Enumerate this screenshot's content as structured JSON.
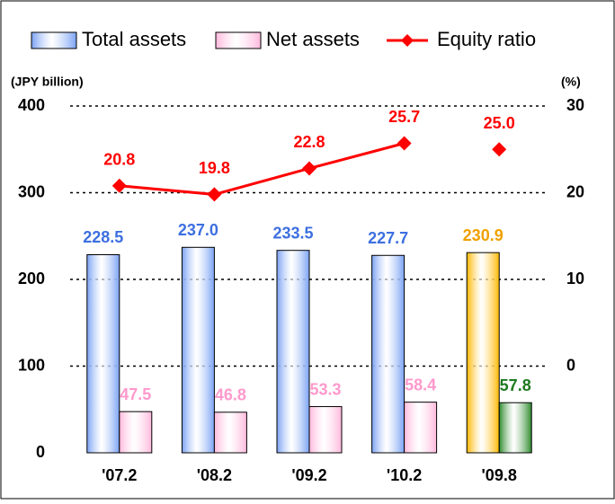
{
  "chart_data": {
    "type": "bar",
    "categories": [
      "'07.2",
      "'08.2",
      "'09.2",
      "'10.2",
      "'09.8"
    ],
    "y_label": "(JPY billion)",
    "y2_label": "(%)",
    "ylim": [
      0,
      400
    ],
    "yticks": [
      0,
      100,
      200,
      300,
      400
    ],
    "y2lim": [
      -10,
      30
    ],
    "y2ticks": [
      0,
      10,
      20,
      30
    ],
    "grid": true,
    "series": [
      {
        "name": "Total assets",
        "type": "bar",
        "color": "#7aa2f4",
        "colors": [
          "#7aa2f4",
          "#7aa2f4",
          "#7aa2f4",
          "#7aa2f4",
          "#ffb800"
        ],
        "label_colors": [
          "#3d6fe0",
          "#3d6fe0",
          "#3d6fe0",
          "#3d6fe0",
          "#f0a000"
        ],
        "values": [
          228.5,
          237.0,
          233.5,
          227.7,
          230.9
        ],
        "value_labels": [
          "228.5",
          "237.0",
          "233.5",
          "227.7",
          "230.9"
        ]
      },
      {
        "name": "Net assets",
        "type": "bar",
        "color": "#ffb8dc",
        "colors": [
          "#ffb8dc",
          "#ffb8dc",
          "#ffb8dc",
          "#ffb8dc",
          "#2e8b2e"
        ],
        "label_colors": [
          "#ff99cc",
          "#ff99cc",
          "#ff99cc",
          "#ff99cc",
          "#1f7a1f"
        ],
        "values": [
          47.5,
          46.8,
          53.3,
          58.4,
          57.8
        ],
        "value_labels": [
          "47.5",
          "46.8",
          "53.3",
          "58.4",
          "57.8"
        ]
      },
      {
        "name": "Equity ratio",
        "type": "line",
        "axis": "y2",
        "color": "#ff0000",
        "break_before": [
          4
        ],
        "values": [
          20.8,
          19.8,
          22.8,
          25.7,
          25.0
        ],
        "value_labels": [
          "20.8",
          "19.8",
          "22.8",
          "25.7",
          "25.0"
        ]
      }
    ]
  }
}
